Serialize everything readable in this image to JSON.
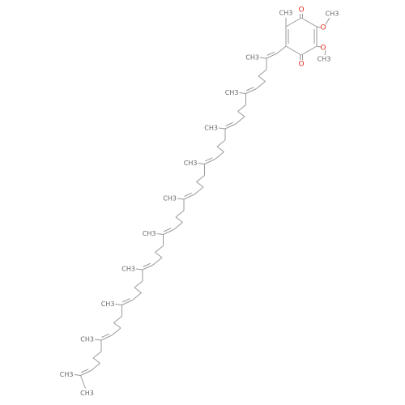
{
  "molecule": {
    "carbonyl_oxygens": [
      "O",
      "O"
    ],
    "methoxy_oxygens": [
      "O",
      "O"
    ],
    "methoxy_methyls": [
      "CH3",
      "CH3"
    ],
    "ring_methyl": "CH3",
    "chain_methyls": [
      "CH3",
      "CH3",
      "CH3",
      "CH3",
      "CH3",
      "CH3",
      "CH3",
      "CH3",
      "CH3"
    ],
    "terminal_methyls": [
      "CH3",
      "CH3"
    ]
  }
}
